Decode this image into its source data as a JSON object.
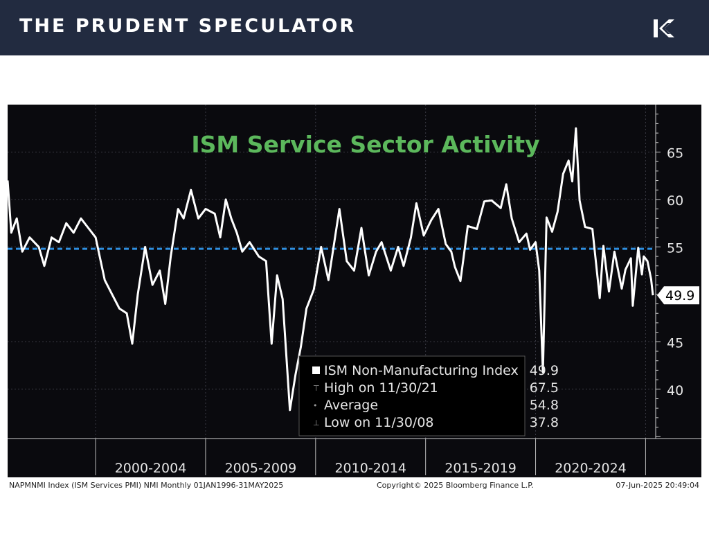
{
  "header": {
    "brand": "THE PRUDENT SPECULATOR",
    "logo_icon": "tps-k-logo",
    "background_color": "#222b40"
  },
  "chart_data": {
    "type": "line",
    "title": "ISM Service Sector Activity",
    "title_color": "#5cb85c",
    "background_color": "#0a0a0e",
    "line_color": "#ffffff",
    "average_line_color": "#2f8fe0",
    "xlabel": "",
    "ylabel": "",
    "xlim": [
      "1996-01",
      "2025-05"
    ],
    "ylim": [
      34.8,
      70.0
    ],
    "y_ticks": [
      40,
      45,
      55,
      60,
      65
    ],
    "x_period_labels": [
      "2000-2004",
      "2005-2009",
      "2010-2014",
      "2015-2019",
      "2020-2024"
    ],
    "x_period_boundaries": [
      "2000-01",
      "2005-01",
      "2010-01",
      "2015-01",
      "2020-01",
      "2025-01"
    ],
    "current_value_label": "49.9",
    "average": 54.8,
    "grid": true,
    "legend_position": "bottom-center",
    "legend": [
      {
        "label": "ISM Non-Manufacturing Index",
        "value": "49.9",
        "marker": "square"
      },
      {
        "label": "High on 11/30/21",
        "value": "67.5",
        "marker": "high"
      },
      {
        "label": "Average",
        "value": "54.8",
        "marker": "avg"
      },
      {
        "label": "Low on 11/30/08",
        "value": "37.8",
        "marker": "low"
      }
    ],
    "footer": {
      "left": "NAPMNMI Index (ISM Services PMI) NMI  Monthly 01JAN1996-31MAY2025",
      "center": "Copyright© 2025 Bloomberg Finance L.P.",
      "right": "07-Jun-2025 20:49:04"
    },
    "series": [
      {
        "name": "ISM Non-Manufacturing Index",
        "points": [
          [
            "1996-01",
            62.0
          ],
          [
            "1996-03",
            56.5
          ],
          [
            "1996-06",
            58.0
          ],
          [
            "1996-09",
            54.5
          ],
          [
            "1997-01",
            56.0
          ],
          [
            "1997-06",
            55.0
          ],
          [
            "1997-09",
            53.0
          ],
          [
            "1998-01",
            56.0
          ],
          [
            "1998-05",
            55.5
          ],
          [
            "1998-09",
            57.5
          ],
          [
            "1999-01",
            56.5
          ],
          [
            "1999-05",
            58.0
          ],
          [
            "1999-09",
            57.0
          ],
          [
            "2000-01",
            56.0
          ],
          [
            "2000-06",
            51.5
          ],
          [
            "2000-10",
            50.0
          ],
          [
            "2001-02",
            48.5
          ],
          [
            "2001-06",
            48.0
          ],
          [
            "2001-09",
            44.8
          ],
          [
            "2001-12",
            50.0
          ],
          [
            "2002-04",
            55.0
          ],
          [
            "2002-08",
            51.0
          ],
          [
            "2002-12",
            52.5
          ],
          [
            "2003-03",
            49.0
          ],
          [
            "2003-06",
            54.0
          ],
          [
            "2003-10",
            59.0
          ],
          [
            "2004-01",
            58.0
          ],
          [
            "2004-05",
            61.0
          ],
          [
            "2004-09",
            58.0
          ],
          [
            "2005-01",
            59.0
          ],
          [
            "2005-06",
            58.5
          ],
          [
            "2005-09",
            56.0
          ],
          [
            "2005-12",
            60.0
          ],
          [
            "2006-03",
            58.0
          ],
          [
            "2006-06",
            56.5
          ],
          [
            "2006-09",
            54.5
          ],
          [
            "2007-01",
            55.5
          ],
          [
            "2007-06",
            54.0
          ],
          [
            "2007-10",
            53.5
          ],
          [
            "2008-01",
            44.8
          ],
          [
            "2008-04",
            52.0
          ],
          [
            "2008-07",
            49.5
          ],
          [
            "2008-11",
            37.8
          ],
          [
            "2009-02",
            41.5
          ],
          [
            "2009-05",
            44.5
          ],
          [
            "2009-08",
            48.5
          ],
          [
            "2009-12",
            50.5
          ],
          [
            "2010-04",
            55.0
          ],
          [
            "2010-08",
            51.5
          ],
          [
            "2011-02",
            59.0
          ],
          [
            "2011-06",
            53.5
          ],
          [
            "2011-10",
            52.5
          ],
          [
            "2012-02",
            57.0
          ],
          [
            "2012-06",
            52.0
          ],
          [
            "2012-10",
            54.5
          ],
          [
            "2013-01",
            55.5
          ],
          [
            "2013-06",
            52.5
          ],
          [
            "2013-10",
            55.0
          ],
          [
            "2014-01",
            53.0
          ],
          [
            "2014-05",
            56.0
          ],
          [
            "2014-08",
            59.6
          ],
          [
            "2014-12",
            56.2
          ],
          [
            "2015-04",
            57.8
          ],
          [
            "2015-08",
            59.0
          ],
          [
            "2015-12",
            55.3
          ],
          [
            "2016-03",
            54.5
          ],
          [
            "2016-05",
            52.9
          ],
          [
            "2016-08",
            51.4
          ],
          [
            "2016-12",
            57.2
          ],
          [
            "2017-05",
            56.9
          ],
          [
            "2017-09",
            59.8
          ],
          [
            "2018-01",
            59.9
          ],
          [
            "2018-06",
            59.1
          ],
          [
            "2018-09",
            61.6
          ],
          [
            "2018-12",
            58.0
          ],
          [
            "2019-04",
            55.5
          ],
          [
            "2019-08",
            56.4
          ],
          [
            "2019-10",
            54.7
          ],
          [
            "2020-01",
            55.5
          ],
          [
            "2020-03",
            52.5
          ],
          [
            "2020-05",
            41.8
          ],
          [
            "2020-07",
            58.1
          ],
          [
            "2020-10",
            56.6
          ],
          [
            "2021-01",
            58.7
          ],
          [
            "2021-04",
            62.7
          ],
          [
            "2021-07",
            64.1
          ],
          [
            "2021-09",
            61.9
          ],
          [
            "2021-11",
            67.5
          ],
          [
            "2022-01",
            59.9
          ],
          [
            "2022-04",
            57.1
          ],
          [
            "2022-08",
            56.9
          ],
          [
            "2022-12",
            49.6
          ],
          [
            "2023-02",
            55.1
          ],
          [
            "2023-05",
            50.3
          ],
          [
            "2023-08",
            54.5
          ],
          [
            "2023-12",
            50.6
          ],
          [
            "2024-02",
            52.6
          ],
          [
            "2024-05",
            53.8
          ],
          [
            "2024-06",
            48.8
          ],
          [
            "2024-09",
            54.9
          ],
          [
            "2024-11",
            52.1
          ],
          [
            "2024-12",
            54.0
          ],
          [
            "2025-02",
            53.5
          ],
          [
            "2025-04",
            51.6
          ],
          [
            "2025-05",
            49.9
          ]
        ]
      }
    ]
  }
}
